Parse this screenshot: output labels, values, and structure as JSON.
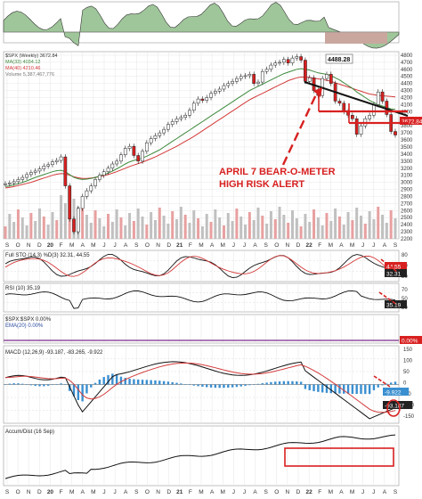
{
  "chart_data": {
    "type": "line",
    "ticker_label": "$SPX (Weekly) 3672.84",
    "months_axis": [
      "S",
      "O",
      "N",
      "D",
      "20",
      "F",
      "M",
      "A",
      "M",
      "J",
      "J",
      "A",
      "S",
      "O",
      "N",
      "D",
      "21",
      "F",
      "M",
      "A",
      "M",
      "J",
      "J",
      "A",
      "S",
      "O",
      "N",
      "D",
      "22",
      "F",
      "M",
      "A",
      "M",
      "J",
      "J",
      "A",
      "S"
    ],
    "main_panel": {
      "legend": [
        "MA(33) 4034.12",
        "MA(40) 4210.46",
        "Volume 5,387,467,776"
      ],
      "y_ticks": [
        4800,
        4700,
        4600,
        4500,
        4400,
        4300,
        4200,
        4100,
        4000,
        3900,
        3800,
        3700,
        3600,
        3500,
        3400,
        3300,
        3200,
        3100,
        3000,
        2900,
        2800,
        2700,
        2600,
        2500,
        2400,
        2300,
        2200
      ],
      "ylim": [
        2200,
        4850
      ],
      "annotations": [
        "4488.28",
        "APRIL 7 BEAR-O-METER",
        "HIGH RISK ALERT"
      ],
      "value_flags": [
        "3672.84"
      ],
      "price": [
        2980,
        2990,
        3010,
        3040,
        3070,
        3110,
        3140,
        3160,
        3190,
        3230,
        3250,
        3290,
        3310,
        3360,
        2950,
        2480,
        2300,
        2630,
        2800,
        2880,
        2950,
        3040,
        3100,
        3150,
        3200,
        3260,
        3300,
        3390,
        3480,
        3510,
        3380,
        3300,
        3440,
        3560,
        3620,
        3660,
        3700,
        3750,
        3820,
        3860,
        3900,
        3920,
        3950,
        4020,
        4120,
        4180,
        4160,
        4200,
        4260,
        4290,
        4320,
        4370,
        4400,
        4430,
        4470,
        4500,
        4510,
        4530,
        4400,
        4420,
        4570,
        4600,
        4660,
        4690,
        4700,
        4740,
        4690,
        4760,
        4780,
        4730,
        4430,
        4480,
        4300,
        4230,
        4470,
        4530,
        4400,
        4150,
        4120,
        4000,
        3950,
        3900,
        3680,
        3800,
        3900,
        3950,
        4100,
        4280,
        4150,
        3960,
        3720,
        3670
      ],
      "ma33": [
        2940,
        2950,
        2965,
        2980,
        3000,
        3020,
        3045,
        3070,
        3090,
        3110,
        3130,
        3150,
        3165,
        3170,
        3150,
        3110,
        3070,
        3050,
        3040,
        3045,
        3055,
        3070,
        3090,
        3110,
        3130,
        3160,
        3190,
        3225,
        3260,
        3290,
        3310,
        3325,
        3345,
        3370,
        3400,
        3430,
        3460,
        3500,
        3540,
        3580,
        3620,
        3660,
        3700,
        3740,
        3780,
        3820,
        3860,
        3900,
        3940,
        3980,
        4020,
        4060,
        4100,
        4140,
        4180,
        4220,
        4260,
        4300,
        4330,
        4360,
        4390,
        4420,
        4450,
        4480,
        4510,
        4540,
        4560,
        4580,
        4600,
        4610,
        4600,
        4590,
        4570,
        4550,
        4540,
        4530,
        4510,
        4480,
        4450,
        4410,
        4370,
        4330,
        4280,
        4240,
        4200,
        4160,
        4130,
        4100,
        4080,
        4060,
        4040,
        4034
      ],
      "ma40": [
        2920,
        2930,
        2940,
        2955,
        2970,
        2985,
        3000,
        3020,
        3040,
        3060,
        3080,
        3100,
        3115,
        3125,
        3120,
        3100,
        3080,
        3065,
        3055,
        3055,
        3060,
        3070,
        3080,
        3095,
        3110,
        3130,
        3150,
        3175,
        3200,
        3225,
        3245,
        3265,
        3285,
        3310,
        3335,
        3360,
        3390,
        3420,
        3450,
        3480,
        3510,
        3545,
        3580,
        3615,
        3650,
        3690,
        3730,
        3770,
        3810,
        3850,
        3890,
        3930,
        3970,
        4010,
        4050,
        4090,
        4130,
        4170,
        4200,
        4230,
        4260,
        4290,
        4320,
        4350,
        4380,
        4410,
        4440,
        4460,
        4480,
        4490,
        4490,
        4485,
        4475,
        4465,
        4455,
        4445,
        4430,
        4410,
        4390,
        4370,
        4350,
        4330,
        4310,
        4290,
        4270,
        4250,
        4240,
        4230,
        4225,
        4220,
        4215,
        4210
      ]
    },
    "sto_panel": {
      "label": "Full STO (14,3) %D(3) 32.31, 44.55",
      "y_ticks": [
        "80",
        "50",
        "20"
      ],
      "flags": [
        "44.55",
        "32.31"
      ]
    },
    "rsi_panel": {
      "label": "RSI (10) 35.19",
      "y_ticks": [
        "70",
        "50",
        "30"
      ],
      "flags": [
        "35.19"
      ]
    },
    "ratio_panel": {
      "label": "$SPX:$SPX 0.00%",
      "sublabel": "EMA(20) 0.00%",
      "flags": [
        "0.00%"
      ]
    },
    "macd_panel": {
      "label": "MACD (12,26,9) -93.187, -83.265, -9.922",
      "y_ticks": [
        "150",
        "100",
        "50",
        "0",
        "-50",
        "-100",
        "-150"
      ],
      "flags": [
        "-9.922",
        "-93.187"
      ]
    },
    "accum_panel": {
      "label": "Accum/Dist (16 Sep)"
    }
  }
}
